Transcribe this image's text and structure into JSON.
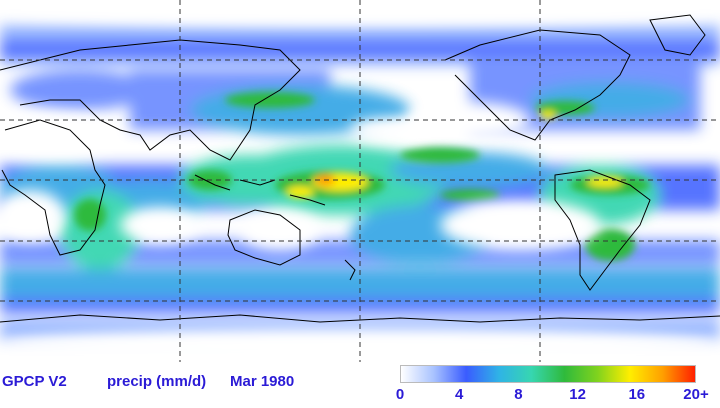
{
  "caption": {
    "dataset": "GPCP V2",
    "variable": "precip (mm/d)",
    "date": "Mar 1980"
  },
  "colorbar": {
    "ticks": [
      "0",
      "4",
      "8",
      "12",
      "16",
      "20+"
    ],
    "tick_values": [
      0,
      4,
      8,
      12,
      16,
      20
    ],
    "range": [
      0,
      20
    ],
    "stops": [
      "#ffffff",
      "#a9c3ff",
      "#3a5cff",
      "#2fb3e6",
      "#37d6b0",
      "#2fba3c",
      "#7fd21e",
      "#ffee00",
      "#ffa000",
      "#ff2000"
    ]
  },
  "map": {
    "background": "#ffffff",
    "coastline_color": "#000000",
    "gridline_color": "#333333",
    "gridlines": "dashed"
  }
}
